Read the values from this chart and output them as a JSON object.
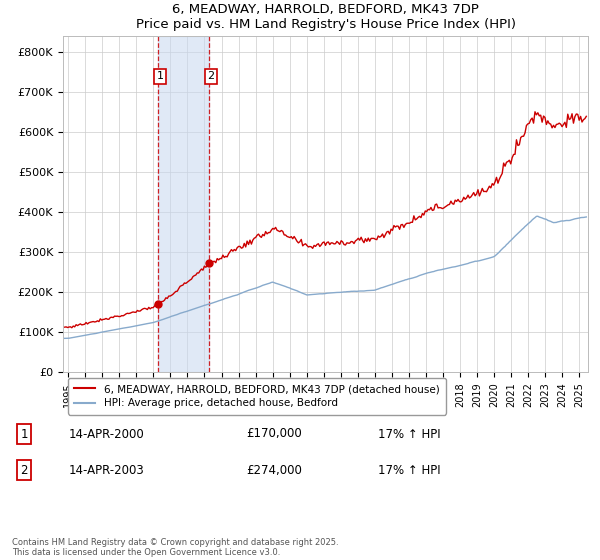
{
  "title": "6, MEADWAY, HARROLD, BEDFORD, MK43 7DP",
  "subtitle": "Price paid vs. HM Land Registry's House Price Index (HPI)",
  "ylabel_ticks": [
    "£0",
    "£100K",
    "£200K",
    "£300K",
    "£400K",
    "£500K",
    "£600K",
    "£700K",
    "£800K"
  ],
  "ytick_values": [
    0,
    100000,
    200000,
    300000,
    400000,
    500000,
    600000,
    700000,
    800000
  ],
  "ylim": [
    0,
    840000
  ],
  "xlim_start": 1994.7,
  "xlim_end": 2025.5,
  "sale1_year": 2000.29,
  "sale1_price": 170000,
  "sale1_label": "1",
  "sale1_date": "14-APR-2000",
  "sale1_price_str": "£170,000",
  "sale1_hpi": "17% ↑ HPI",
  "sale2_year": 2003.29,
  "sale2_price": 274000,
  "sale2_label": "2",
  "sale2_date": "14-APR-2003",
  "sale2_price_str": "£274,000",
  "sale2_hpi": "17% ↑ HPI",
  "highlight_color": "#c8d8f0",
  "highlight_alpha": 0.55,
  "vline_color": "#cc0000",
  "red_color": "#cc0000",
  "blue_color": "#88aacc",
  "grid_color": "#cccccc",
  "bg_color": "#ffffff",
  "legend_red": "6, MEADWAY, HARROLD, BEDFORD, MK43 7DP (detached house)",
  "legend_blue": "HPI: Average price, detached house, Bedford",
  "table_rows": [
    {
      "num": "1",
      "date": "14-APR-2000",
      "price": "£170,000",
      "hpi": "17% ↑ HPI"
    },
    {
      "num": "2",
      "date": "14-APR-2003",
      "price": "£274,000",
      "hpi": "17% ↑ HPI"
    }
  ],
  "footnote": "Contains HM Land Registry data © Crown copyright and database right 2025.\nThis data is licensed under the Open Government Licence v3.0."
}
